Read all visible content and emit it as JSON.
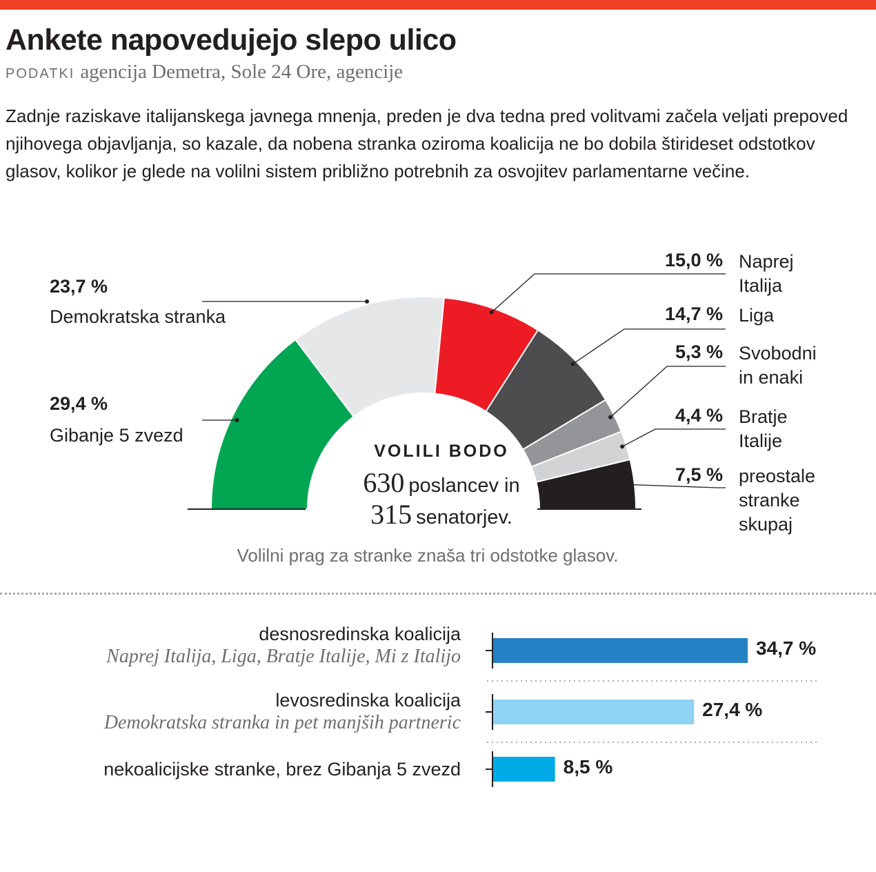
{
  "header": {
    "title": "Ankete napovedujejo slepo ulico",
    "source_label": "PODATKI",
    "source_text": "agencija Demetra, Sole 24 Ore, agencije",
    "intro": "Zadnje raziskave italijanskega javnega mnenja, preden je dva tedna pred volitvami začela veljati prepoved njihovega objavljanja, so kazale, da nobena stranka oziroma koalicija ne bo dobila štirideset odstotkov glasov, kolikor je glede na volilni sistem približno potrebnih za osvojitev parlamentarne večine.",
    "accent_color": "#ee4024"
  },
  "center": {
    "title": "VOLILI BODO",
    "seats_1_num": "630",
    "seats_1_label": "poslancev in",
    "seats_2_num": "315",
    "seats_2_label": "senatorjev."
  },
  "threshold_note": "Volilni prag za stranke znaša tri odstotke glasov.",
  "chart_data": [
    {
      "type": "pie",
      "subtype": "semicircle",
      "series": [
        {
          "name": "Gibanje 5 zvezd",
          "value": 29.4,
          "label": "29,4 %",
          "color": "#00a651"
        },
        {
          "name": "Demokratska stranka",
          "value": 23.7,
          "label": "23,7 %",
          "color": "#e6e7e8"
        },
        {
          "name": "Naprej Italija",
          "value": 15.0,
          "label": "15,0 %",
          "color": "#ed1c24"
        },
        {
          "name": "Liga",
          "value": 14.7,
          "label": "14,7 %",
          "color": "#4d4d4f"
        },
        {
          "name": "Svobodni in enaki",
          "value": 5.3,
          "label": "5,3 %",
          "color": "#939598"
        },
        {
          "name": "Bratje Italije",
          "value": 4.4,
          "label": "4,4 %",
          "color": "#d1d3d4"
        },
        {
          "name": "preostale stranke skupaj",
          "value": 7.5,
          "label": "7,5 %",
          "color": "#231f20"
        }
      ],
      "name_lines": [
        [
          "Gibanje 5 zvezd"
        ],
        [
          "Demokratska stranka"
        ],
        [
          "Naprej",
          "Italija"
        ],
        [
          "Liga"
        ],
        [
          "Svobodni",
          "in enaki"
        ],
        [
          "Bratje",
          "Italije"
        ],
        [
          "preostale",
          "stranke",
          "skupaj"
        ]
      ]
    },
    {
      "type": "bar",
      "orientation": "horizontal",
      "categories": [
        "desnosredinska koalicija",
        "levosredinska koalicija",
        "nekoalicijske stranke, brez Gibanja 5 zvezd"
      ],
      "subtitles": [
        "Naprej Italija, Liga, Bratje Italije, Mi z Italijo",
        "Demokratska stranka in pet manjših partneric",
        ""
      ],
      "values": [
        34.7,
        27.4,
        8.5
      ],
      "value_labels": [
        "34,7 %",
        "27,4 %",
        "8,5 %"
      ],
      "colors": [
        "#2482c5",
        "#8fd3f5",
        "#00aae6"
      ]
    }
  ]
}
